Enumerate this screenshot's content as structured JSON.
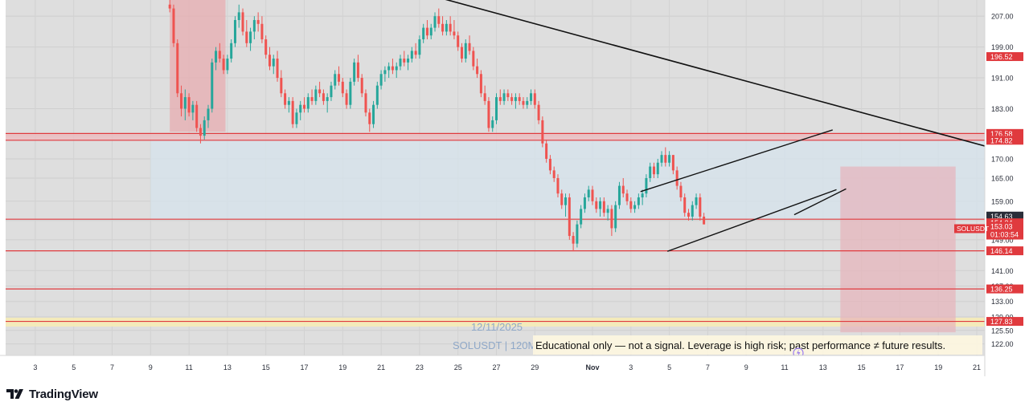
{
  "platform": {
    "brand": "TradingView"
  },
  "chart_data": {
    "type": "candlestick",
    "symbol": "SOLUSDT",
    "watermark": {
      "date": "12/11/2025",
      "symbol_text": "SOLUSDT | 120M"
    },
    "disclaimer": "Educational only — not a signal. Leverage is high risk; past performance ≠ future results.",
    "y_axis": {
      "side": "right",
      "ylim": [
        119.0,
        211.2
      ],
      "tick_labels": [
        "207.00",
        "199.00",
        "191.00",
        "183.00",
        "176.00",
        "170.00",
        "165.00",
        "159.00",
        "154.00",
        "149.00",
        "141.00",
        "137.00",
        "133.00",
        "129.00",
        "125.50",
        "122.00"
      ],
      "tick_values": [
        207.0,
        199.0,
        191.0,
        183.0,
        176.0,
        170.0,
        165.0,
        159.0,
        154.0,
        149.0,
        141.0,
        137.0,
        133.0,
        129.0,
        125.5,
        122.0
      ]
    },
    "x_axis": {
      "tick_labels": [
        "3",
        "5",
        "7",
        "9",
        "11",
        "13",
        "15",
        "17",
        "19",
        "21",
        "23",
        "25",
        "27",
        "29",
        "Nov",
        "3",
        "5",
        "7",
        "9",
        "11",
        "13",
        "15",
        "17",
        "19",
        "21"
      ],
      "tick_t": [
        1,
        3,
        5,
        7,
        9,
        11,
        13,
        15,
        17,
        19,
        21,
        23,
        25,
        27,
        30,
        32,
        34,
        36,
        38,
        40,
        42,
        44,
        46,
        48,
        50
      ]
    },
    "price_labels": [
      {
        "text": "196.52",
        "value": 196.52,
        "style": "red-fill"
      },
      {
        "text": "176.58",
        "value": 176.58,
        "style": "red-fill"
      },
      {
        "text": "174.82",
        "value": 174.82,
        "style": "red-fill"
      },
      {
        "text": "154.63",
        "value": 154.63,
        "style": "dark-fill"
      },
      {
        "text": "154.34",
        "value": 154.34,
        "style": "red-fill"
      },
      {
        "text": "153.03",
        "value": 153.03,
        "style": "red-fill",
        "sub": "01:03:54",
        "tag": "SOLUSDT"
      },
      {
        "text": "146.14",
        "value": 146.14,
        "style": "red-fill"
      },
      {
        "text": "136.25",
        "value": 136.25,
        "style": "red-fill"
      },
      {
        "text": "127.83",
        "value": 127.83,
        "style": "red-fill"
      }
    ],
    "horizontal_levels": [
      176.58,
      174.82,
      154.34,
      146.14,
      136.25,
      127.83
    ],
    "zones": [
      {
        "name": "resistance-band",
        "kind": "price-band",
        "from": 174.82,
        "to": 176.58,
        "color": "#f0b8bc"
      },
      {
        "name": "support-zone",
        "kind": "price-band",
        "from": 126.5,
        "to": 128.8,
        "color": "#f6ebb6"
      },
      {
        "name": "range-shade",
        "kind": "box",
        "t0": 7.0,
        "t1": 51.0,
        "from": 154.34,
        "to": 174.82,
        "color": "#d6e3ec"
      },
      {
        "name": "prior-highlight",
        "kind": "box",
        "t0": 8.0,
        "t1": 10.9,
        "from": 177.0,
        "to": 215.0,
        "color": "#e8a9ae"
      },
      {
        "name": "projection-box",
        "kind": "box",
        "t0": 42.9,
        "t1": 48.9,
        "from": 125.0,
        "to": 168.0,
        "color": "#e7b4ba"
      }
    ],
    "trendlines": [
      {
        "name": "long-downtrend",
        "t0": 21.5,
        "p0": 212.5,
        "t1": 51.4,
        "p1": 172.0
      },
      {
        "name": "wedge-upper",
        "t0": 32.5,
        "p0": 161.5,
        "t1": 42.5,
        "p1": 177.5
      },
      {
        "name": "wedge-lower",
        "t0": 33.9,
        "p0": 146.0,
        "t1": 42.7,
        "p1": 162.0
      },
      {
        "name": "wedge-lower-ext",
        "t0": 40.5,
        "p0": 155.5,
        "t1": 43.2,
        "p1": 162.2
      }
    ],
    "candles": [
      [
        8.0,
        210,
        212,
        208,
        209
      ],
      [
        8.2,
        209,
        210,
        199,
        200
      ],
      [
        8.4,
        200,
        201,
        186,
        187
      ],
      [
        8.6,
        187,
        189,
        181,
        183
      ],
      [
        8.8,
        183,
        188,
        180,
        186
      ],
      [
        9.0,
        186,
        187,
        181,
        182
      ],
      [
        9.2,
        182,
        185,
        180,
        184
      ],
      [
        9.4,
        184,
        185,
        177,
        178
      ],
      [
        9.6,
        178,
        179,
        174,
        176
      ],
      [
        9.8,
        176,
        181,
        175,
        180
      ],
      [
        10.0,
        180,
        184,
        178,
        183
      ],
      [
        10.2,
        183,
        196,
        182,
        195
      ],
      [
        10.4,
        195,
        199,
        193,
        198
      ],
      [
        10.6,
        198,
        200,
        195,
        196
      ],
      [
        10.8,
        196,
        197,
        192,
        193
      ],
      [
        11.0,
        193,
        197,
        192,
        196
      ],
      [
        11.2,
        196,
        201,
        195,
        200
      ],
      [
        11.4,
        200,
        207,
        199,
        206
      ],
      [
        11.6,
        206,
        210,
        204,
        208
      ],
      [
        11.8,
        208,
        209,
        202,
        203
      ],
      [
        12.0,
        203,
        206,
        199,
        200
      ],
      [
        12.2,
        200,
        204,
        198,
        203
      ],
      [
        12.4,
        203,
        207,
        201,
        206
      ],
      [
        12.6,
        206,
        208,
        203,
        205
      ],
      [
        12.8,
        205,
        207,
        200,
        201
      ],
      [
        13.0,
        201,
        202,
        196,
        197
      ],
      [
        13.2,
        197,
        199,
        193,
        194
      ],
      [
        13.4,
        194,
        197,
        192,
        196
      ],
      [
        13.6,
        196,
        198,
        190,
        191
      ],
      [
        13.8,
        191,
        193,
        186,
        187
      ],
      [
        14.0,
        187,
        188,
        183,
        184
      ],
      [
        14.2,
        184,
        186,
        182,
        185
      ],
      [
        14.4,
        185,
        186,
        178,
        179
      ],
      [
        14.6,
        179,
        183,
        178,
        182
      ],
      [
        14.8,
        182,
        185,
        180,
        184
      ],
      [
        15.0,
        184,
        186,
        182,
        183
      ],
      [
        15.2,
        183,
        187,
        182,
        186
      ],
      [
        15.4,
        186,
        188,
        184,
        185
      ],
      [
        15.6,
        185,
        189,
        184,
        188
      ],
      [
        15.8,
        188,
        190,
        186,
        187
      ],
      [
        16.0,
        187,
        188,
        184,
        185
      ],
      [
        16.2,
        185,
        187,
        182,
        186
      ],
      [
        16.4,
        186,
        190,
        185,
        189
      ],
      [
        16.6,
        189,
        193,
        188,
        192
      ],
      [
        16.8,
        192,
        194,
        189,
        190
      ],
      [
        17.0,
        190,
        191,
        186,
        187
      ],
      [
        17.2,
        187,
        188,
        183,
        184
      ],
      [
        17.4,
        184,
        191,
        183,
        190
      ],
      [
        17.6,
        190,
        196,
        189,
        195
      ],
      [
        17.8,
        195,
        197,
        190,
        191
      ],
      [
        18.0,
        191,
        192,
        186,
        187
      ],
      [
        18.2,
        187,
        188,
        181,
        182
      ],
      [
        18.4,
        182,
        183,
        177,
        179
      ],
      [
        18.6,
        179,
        185,
        178,
        184
      ],
      [
        18.8,
        184,
        190,
        183,
        189
      ],
      [
        19.0,
        189,
        193,
        188,
        192
      ],
      [
        19.2,
        192,
        194,
        190,
        193
      ],
      [
        19.4,
        193,
        195,
        191,
        194
      ],
      [
        19.6,
        194,
        196,
        192,
        193
      ],
      [
        19.8,
        193,
        195,
        191,
        194
      ],
      [
        20.0,
        194,
        197,
        193,
        196
      ],
      [
        20.2,
        196,
        198,
        194,
        195
      ],
      [
        20.4,
        195,
        197,
        193,
        196
      ],
      [
        20.6,
        196,
        199,
        195,
        198
      ],
      [
        20.8,
        198,
        200,
        196,
        197
      ],
      [
        21.0,
        197,
        202,
        196,
        201
      ],
      [
        21.2,
        201,
        205,
        200,
        204
      ],
      [
        21.4,
        204,
        206,
        201,
        202
      ],
      [
        21.6,
        202,
        205,
        201,
        204
      ],
      [
        21.8,
        204,
        208,
        203,
        207
      ],
      [
        22.0,
        207,
        209,
        204,
        205
      ],
      [
        22.2,
        205,
        207,
        202,
        203
      ],
      [
        22.4,
        203,
        206,
        202,
        205
      ],
      [
        22.6,
        205,
        207,
        202,
        203
      ],
      [
        22.8,
        203,
        206,
        201,
        202
      ],
      [
        23.0,
        202,
        203,
        198,
        199
      ],
      [
        23.2,
        199,
        200,
        195,
        196
      ],
      [
        23.4,
        196,
        201,
        195,
        200
      ],
      [
        23.6,
        200,
        202,
        197,
        198
      ],
      [
        23.8,
        198,
        199,
        193,
        194
      ],
      [
        24.0,
        194,
        196,
        191,
        192
      ],
      [
        24.2,
        192,
        193,
        186,
        187
      ],
      [
        24.4,
        187,
        189,
        184,
        185
      ],
      [
        24.6,
        185,
        186,
        177,
        178
      ],
      [
        24.8,
        178,
        181,
        177,
        180
      ],
      [
        25.0,
        180,
        187,
        179,
        186
      ],
      [
        25.2,
        186,
        188,
        184,
        185
      ],
      [
        25.4,
        185,
        188,
        184,
        187
      ],
      [
        25.6,
        187,
        188,
        185,
        186
      ],
      [
        25.8,
        186,
        187,
        184,
        185
      ],
      [
        26.0,
        185,
        187,
        183,
        186
      ],
      [
        26.2,
        186,
        187,
        184,
        185
      ],
      [
        26.4,
        185,
        186,
        183,
        184
      ],
      [
        26.6,
        184,
        186,
        183,
        185
      ],
      [
        26.8,
        185,
        188,
        184,
        187
      ],
      [
        27.0,
        187,
        188,
        183,
        184
      ],
      [
        27.2,
        184,
        185,
        179,
        180
      ],
      [
        27.4,
        180,
        181,
        173,
        174
      ],
      [
        27.6,
        174,
        175,
        169,
        170
      ],
      [
        27.8,
        170,
        171,
        166,
        167
      ],
      [
        28.0,
        167,
        168,
        164,
        165
      ],
      [
        28.2,
        165,
        166,
        160,
        161
      ],
      [
        28.4,
        161,
        162,
        157,
        158
      ],
      [
        28.6,
        158,
        161,
        155,
        160
      ],
      [
        28.8,
        160,
        161,
        149,
        150
      ],
      [
        29.0,
        150,
        151,
        146,
        148
      ],
      [
        29.2,
        148,
        154,
        147,
        153
      ],
      [
        29.4,
        153,
        158,
        152,
        157
      ],
      [
        29.6,
        157,
        161,
        156,
        160
      ],
      [
        29.8,
        160,
        163,
        159,
        162
      ],
      [
        30.0,
        162,
        163,
        158,
        159
      ],
      [
        30.2,
        159,
        160,
        156,
        157
      ],
      [
        30.4,
        157,
        160,
        155,
        159
      ],
      [
        30.6,
        159,
        160,
        155,
        156
      ],
      [
        30.8,
        156,
        158,
        154,
        157
      ],
      [
        31.0,
        157,
        158,
        150,
        152
      ],
      [
        31.2,
        152,
        159,
        151,
        158
      ],
      [
        31.4,
        158,
        164,
        157,
        163
      ],
      [
        31.6,
        163,
        165,
        160,
        161
      ],
      [
        31.8,
        161,
        162,
        158,
        159
      ],
      [
        32.0,
        159,
        160,
        156,
        157
      ],
      [
        32.2,
        157,
        159,
        156,
        158
      ],
      [
        32.4,
        158,
        161,
        157,
        160
      ],
      [
        32.6,
        160,
        162,
        158,
        161
      ],
      [
        32.8,
        161,
        166,
        160,
        165
      ],
      [
        33.0,
        165,
        169,
        164,
        168
      ],
      [
        33.2,
        168,
        169,
        165,
        166
      ],
      [
        33.4,
        166,
        170,
        165,
        169
      ],
      [
        33.6,
        169,
        172,
        168,
        171
      ],
      [
        33.8,
        171,
        173,
        168,
        169
      ],
      [
        34.0,
        169,
        172,
        168,
        171
      ],
      [
        34.2,
        171,
        171,
        166,
        167
      ],
      [
        34.4,
        167,
        168,
        162,
        163
      ],
      [
        34.6,
        163,
        164,
        159,
        160
      ],
      [
        34.8,
        160,
        161,
        155,
        156
      ],
      [
        35.0,
        156,
        157,
        154,
        155
      ],
      [
        35.2,
        155,
        159,
        154,
        158
      ],
      [
        35.4,
        158,
        161,
        157,
        160
      ],
      [
        35.6,
        160,
        161,
        154,
        155
      ],
      [
        35.8,
        155,
        156,
        153,
        153
      ]
    ]
  }
}
